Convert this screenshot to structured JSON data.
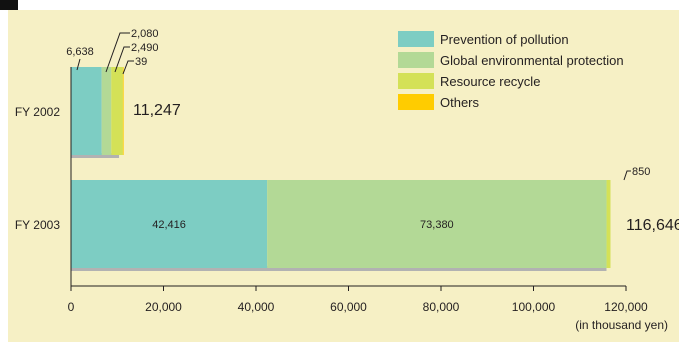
{
  "chart_data": {
    "type": "bar",
    "orientation": "horizontal",
    "stacked": true,
    "title": "",
    "xlabel": "",
    "ylabel": "",
    "unit_label": "(in thousand yen)",
    "categories": [
      "FY 2002",
      "FY 2003"
    ],
    "series": [
      {
        "name": "Prevention of pollution",
        "values": [
          6638,
          42416
        ],
        "color": "#7dcdc3"
      },
      {
        "name": "Global environmental protection",
        "values": [
          2080,
          73380
        ],
        "color": "#b3d996"
      },
      {
        "name": "Resource recycle",
        "values": [
          2490,
          850
        ],
        "color": "#d4e157"
      },
      {
        "name": "Others",
        "values": [
          39,
          0
        ],
        "color": "#ffcc00"
      }
    ],
    "totals": [
      11247,
      116646
    ],
    "total_labels": [
      "11,247",
      "116,646"
    ],
    "segment_labels": [
      [
        "6,638",
        "2,080",
        "2,490",
        "39"
      ],
      [
        "42,416",
        "73,380",
        "850",
        ""
      ]
    ],
    "xlim": [
      0,
      120000
    ],
    "xticks": [
      0,
      20000,
      40000,
      60000,
      80000,
      100000,
      120000
    ],
    "xtick_labels": [
      "0",
      "20,000",
      "40,000",
      "60,000",
      "80,000",
      "100,000",
      "120,000"
    ],
    "grid": false,
    "legend_position": "top-right",
    "colors": {
      "background": "#f6f0c5",
      "shadow": "#b2b2b2",
      "marker": "#111111"
    }
  }
}
